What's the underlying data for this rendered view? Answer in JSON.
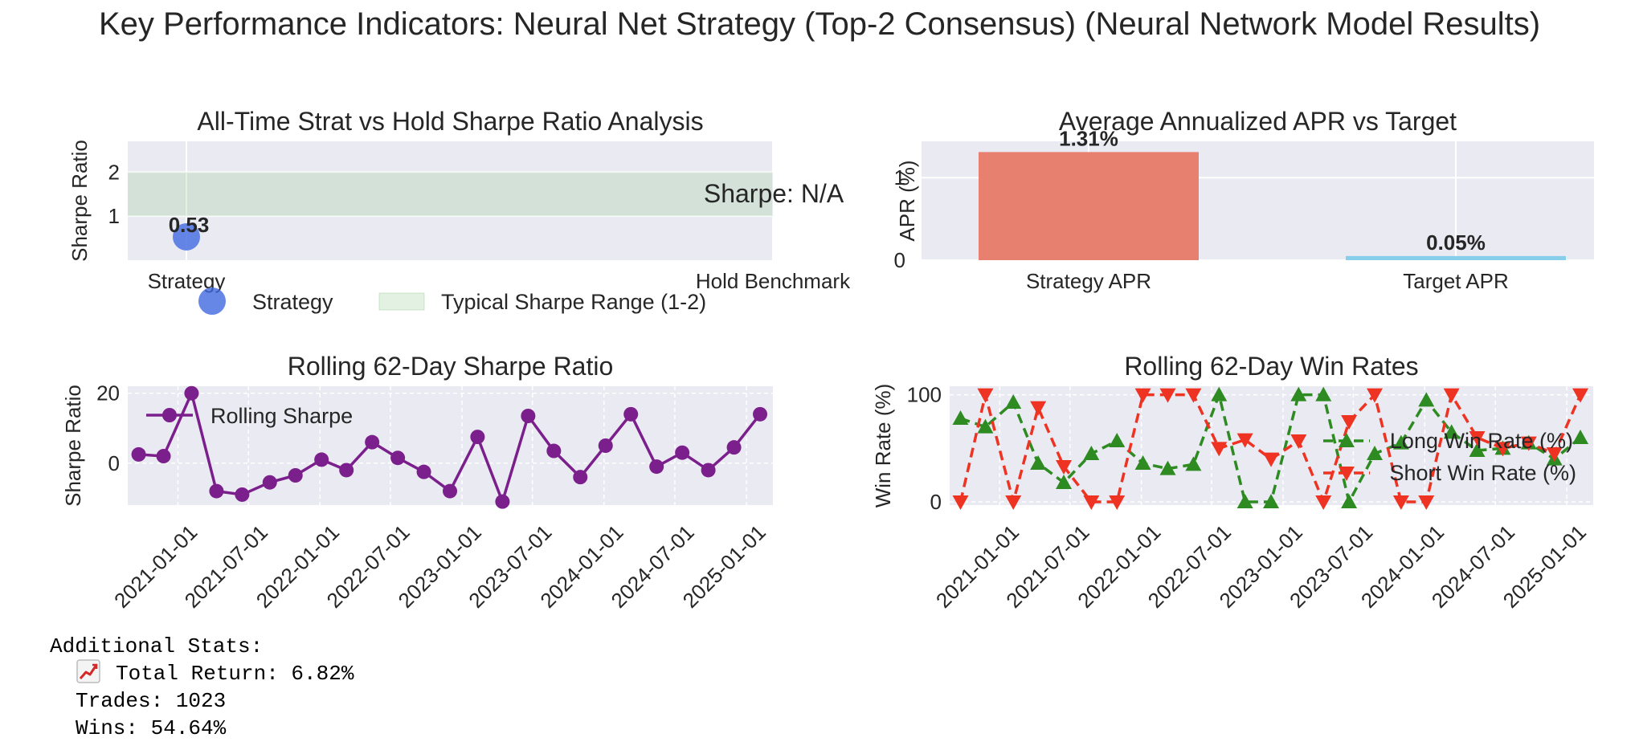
{
  "suptitle": "Key Performance Indicators: Neural Net Strategy (Top-2 Consensus) (Neural Network Model Results)",
  "colors": {
    "panel_bg": "#EAEAF2",
    "grid": "#FFFFFF",
    "strategy_point": "#4169E1",
    "band": "#90C890",
    "strategy_bar": "#E8806F",
    "target_bar": "#87CEEB",
    "rolling_sharpe": "#7B1F8C",
    "long": "#2E8B22",
    "short": "#EE3322"
  },
  "chart_data": [
    {
      "id": "sharpe",
      "type": "scatter",
      "title": "All-Time Strat vs Hold Sharpe Ratio Analysis",
      "xlabel": "",
      "ylabel": "Sharpe Ratio",
      "categories": [
        "Strategy",
        "Hold Benchmark"
      ],
      "points": [
        {
          "category": "Strategy",
          "value": 0.53,
          "label": "0.53"
        }
      ],
      "band": {
        "low": 1,
        "high": 2,
        "label": "Typical Sharpe Range (1-2)"
      },
      "annotation": "Sharpe: N/A",
      "xlim": [
        -0.1,
        1.0
      ],
      "ylim": [
        0,
        2.7
      ],
      "yticks": [
        1,
        2
      ],
      "legend": [
        {
          "type": "marker",
          "label": "Strategy"
        },
        {
          "type": "patch",
          "label": "Typical Sharpe Range (1-2)"
        }
      ],
      "legend_position": "below"
    },
    {
      "id": "apr",
      "type": "bar",
      "title": "Average Annualized APR vs Target",
      "ylabel": "APR (%)",
      "categories": [
        "Strategy APR",
        "Target APR"
      ],
      "values": [
        1.31,
        0.05
      ],
      "value_labels": [
        "1.31%",
        "0.05%"
      ],
      "ylim": [
        0,
        1.44
      ],
      "yticks": [
        0,
        1
      ]
    },
    {
      "id": "rolling_sharpe",
      "type": "line",
      "title": "Rolling 62-Day Sharpe Ratio",
      "ylabel": "Sharpe Ratio",
      "x_ticks": [
        "2021-01-01",
        "2021-07-01",
        "2022-01-01",
        "2022-07-01",
        "2023-01-01",
        "2023-07-01",
        "2024-01-01",
        "2024-07-01",
        "2025-01-01"
      ],
      "yticks": [
        0,
        20
      ],
      "ylim": [
        -12,
        22
      ],
      "series": [
        {
          "name": "Rolling Sharpe",
          "x": [
            "2020-09-22",
            "2020-11-25",
            "2021-02-05",
            "2021-04-10",
            "2021-06-15",
            "2021-08-25",
            "2021-10-30",
            "2022-01-05",
            "2022-03-10",
            "2022-05-15",
            "2022-07-20",
            "2022-09-25",
            "2022-12-01",
            "2023-02-10",
            "2023-04-15",
            "2023-06-20",
            "2023-08-25",
            "2023-11-01",
            "2024-01-05",
            "2024-03-10",
            "2024-05-15",
            "2024-07-20",
            "2024-09-25",
            "2024-11-30",
            "2025-02-05"
          ],
          "values": [
            2.5,
            2,
            20,
            -8,
            -9,
            -5.5,
            -3.5,
            1,
            -2,
            6,
            1.5,
            -2.5,
            -8,
            7.5,
            -11,
            13.5,
            3.5,
            -4,
            5,
            14,
            -1,
            3,
            -2,
            4.5,
            14
          ]
        }
      ],
      "legend_position": "upper left"
    },
    {
      "id": "win_rates",
      "type": "line",
      "title": "Rolling 62-Day Win Rates",
      "ylabel": "Win Rate (%)",
      "x_ticks": [
        "2021-01-01",
        "2021-07-01",
        "2022-01-01",
        "2022-07-01",
        "2023-01-01",
        "2023-07-01",
        "2024-01-01",
        "2024-07-01",
        "2025-01-01"
      ],
      "yticks": [
        0,
        100
      ],
      "ylim": [
        -3,
        108
      ],
      "series": [
        {
          "name": "Long Win Rate (%)",
          "x": [
            "2020-09-22",
            "2020-11-25",
            "2021-02-05",
            "2021-04-10",
            "2021-06-15",
            "2021-08-25",
            "2021-10-30",
            "2022-01-05",
            "2022-03-10",
            "2022-05-15",
            "2022-07-20",
            "2022-09-25",
            "2022-12-01",
            "2023-02-10",
            "2023-04-15",
            "2023-06-20",
            "2023-08-25",
            "2023-11-01",
            "2024-01-05",
            "2024-03-10",
            "2024-05-15",
            "2024-07-20",
            "2024-09-25",
            "2024-11-30",
            "2025-02-05"
          ],
          "values": [
            78,
            70,
            93,
            36,
            18,
            45,
            57,
            36,
            31,
            35,
            100,
            0,
            0,
            100,
            100,
            0,
            45,
            55,
            95,
            65,
            48,
            50,
            55,
            40,
            60
          ]
        },
        {
          "name": "Short Win Rate (%)",
          "x": [
            "2020-09-22",
            "2020-11-25",
            "2021-02-05",
            "2021-04-10",
            "2021-06-15",
            "2021-08-25",
            "2021-10-30",
            "2022-01-05",
            "2022-03-10",
            "2022-05-15",
            "2022-07-20",
            "2022-09-25",
            "2022-12-01",
            "2023-02-10",
            "2023-04-15",
            "2023-06-20",
            "2023-08-25",
            "2023-11-01",
            "2024-01-05",
            "2024-03-10",
            "2024-05-15",
            "2024-07-20",
            "2024-09-25",
            "2024-11-30",
            "2025-02-05"
          ],
          "values": [
            0,
            100,
            0,
            88,
            33,
            0,
            0,
            100,
            100,
            100,
            50,
            58,
            40,
            57,
            0,
            75,
            100,
            0,
            0,
            100,
            60,
            50,
            55,
            45,
            100
          ]
        }
      ],
      "legend_position": "center right"
    }
  ],
  "stats": {
    "heading": "Additional Stats:",
    "total_return_icon": "chart-increasing-icon",
    "total_return": "Total Return: 6.82%",
    "trades": "Trades: 1023",
    "wins": "Wins: 54.64%"
  }
}
